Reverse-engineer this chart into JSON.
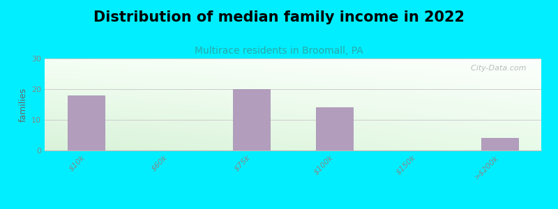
{
  "title": "Distribution of median family income in 2022",
  "subtitle": "Multirace residents in Broomall, PA",
  "categories": [
    "$10k",
    "$60k",
    "$75k",
    "$100k",
    "$150k",
    ">$200k"
  ],
  "values": [
    18,
    0,
    20,
    14,
    0,
    4
  ],
  "bar_color": "#b39dbd",
  "bar_edge_color": "#a08ab0",
  "background_outer": "#00eeff",
  "background_inner_topleft": "#d8edd8",
  "background_inner_topright": "#f0f8f0",
  "background_inner_bottom": "#e8f5e0",
  "title_fontsize": 15,
  "subtitle_fontsize": 10,
  "subtitle_color": "#2aa8a8",
  "ylabel": "families",
  "ylabel_fontsize": 9,
  "ylabel_color": "#666666",
  "tick_label_color": "#888888",
  "tick_label_fontsize": 8,
  "ylim": [
    0,
    30
  ],
  "yticks": [
    0,
    10,
    20,
    30
  ],
  "grid_color": "#cccccc",
  "watermark": "  City-Data.com",
  "watermark_color": "#aaaaaa",
  "bar_width": 0.45
}
